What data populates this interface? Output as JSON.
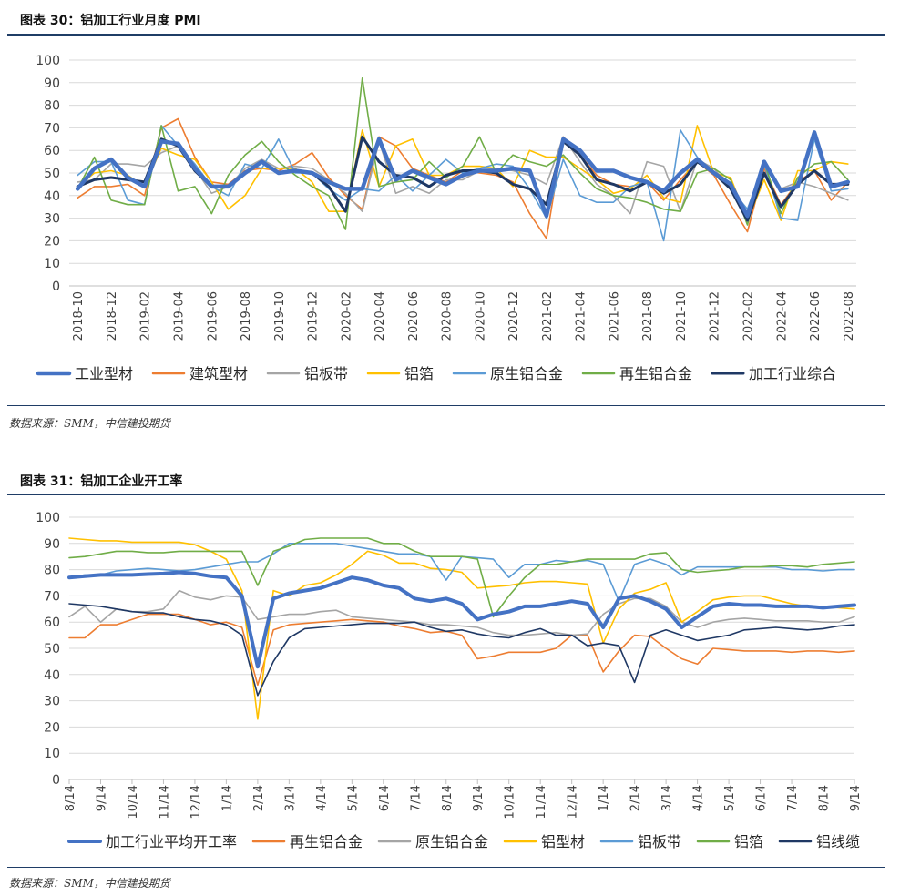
{
  "fig1": {
    "title": "图表 30：铝加工行业月度 PMI",
    "source": "数据来源：SMM，中信建投期货"
  },
  "fig2": {
    "title": "图表 31：铝加工企业开工率",
    "source": "数据来源：SMM，中信建投期货"
  },
  "chart_data": [
    {
      "type": "line",
      "title": "铝加工行业月度 PMI",
      "ylim": [
        0,
        100
      ],
      "yticks": [
        0,
        10,
        20,
        30,
        40,
        50,
        60,
        70,
        80,
        90,
        100
      ],
      "x": [
        "2018-10",
        "2018-11",
        "2018-12",
        "2019-01",
        "2019-02",
        "2019-03",
        "2019-04",
        "2019-05",
        "2019-06",
        "2019-07",
        "2019-08",
        "2019-09",
        "2019-10",
        "2019-11",
        "2019-12",
        "2020-01",
        "2020-02",
        "2020-03",
        "2020-04",
        "2020-05",
        "2020-06",
        "2020-07",
        "2020-08",
        "2020-09",
        "2020-10",
        "2020-11",
        "2020-12",
        "2021-01",
        "2021-02",
        "2021-03",
        "2021-04",
        "2021-05",
        "2021-06",
        "2021-07",
        "2021-08",
        "2021-09",
        "2021-10",
        "2021-11",
        "2021-12",
        "2022-01",
        "2022-02",
        "2022-03",
        "2022-04",
        "2022-05",
        "2022-06",
        "2022-07",
        "2022-08"
      ],
      "xtick_labels": [
        "2018-10",
        "2018-12",
        "2019-02",
        "2019-04",
        "2019-06",
        "2019-08",
        "2019-10",
        "2019-12",
        "2020-02",
        "2020-04",
        "2020-06",
        "2020-08",
        "2020-10",
        "2020-12",
        "2021-02",
        "2021-04",
        "2021-06",
        "2021-08",
        "2021-10",
        "2021-12",
        "2022-02",
        "2022-04",
        "2022-06",
        "2022-08"
      ],
      "series": [
        {
          "name": "工业型材",
          "color": "#4472c4",
          "width": 4.5,
          "values": [
            43,
            52,
            56,
            48,
            44,
            64,
            63,
            52,
            44,
            44,
            50,
            55,
            50,
            51,
            50,
            46,
            43,
            43,
            65,
            47,
            51,
            48,
            45,
            49,
            51,
            51,
            52,
            51,
            31,
            65,
            60,
            51,
            51,
            48,
            46,
            42,
            50,
            56,
            50,
            45,
            31,
            55,
            42,
            44,
            68,
            44,
            46
          ]
        },
        {
          "name": "建筑型材",
          "color": "#ed7d31",
          "width": 1.6,
          "values": [
            39,
            44,
            44,
            45,
            40,
            70,
            74,
            57,
            46,
            45,
            51,
            52,
            51,
            54,
            59,
            48,
            40,
            34,
            66,
            62,
            52,
            49,
            46,
            51,
            50,
            49,
            46,
            32,
            21,
            66,
            58,
            49,
            45,
            44,
            46,
            38,
            47,
            55,
            49,
            36,
            24,
            52,
            36,
            46,
            51,
            38,
            46
          ]
        },
        {
          "name": "铝板带",
          "color": "#a5a5a5",
          "width": 1.6,
          "values": [
            46,
            47,
            54,
            54,
            53,
            59,
            62,
            52,
            41,
            44,
            52,
            56,
            52,
            53,
            52,
            47,
            41,
            33,
            64,
            41,
            44,
            41,
            47,
            47,
            51,
            52,
            51,
            49,
            45,
            66,
            55,
            45,
            40,
            32,
            55,
            53,
            33,
            56,
            52,
            43,
            34,
            54,
            43,
            46,
            44,
            41,
            38
          ]
        },
        {
          "name": "铝箔",
          "color": "#ffc000",
          "width": 1.6,
          "values": [
            44,
            50,
            51,
            49,
            44,
            61,
            58,
            56,
            46,
            34,
            40,
            52,
            52,
            52,
            46,
            33,
            33,
            69,
            44,
            62,
            65,
            49,
            49,
            53,
            53,
            52,
            44,
            60,
            57,
            57,
            52,
            47,
            41,
            43,
            49,
            39,
            37,
            71,
            50,
            48,
            29,
            47,
            29,
            51,
            51,
            55,
            54
          ]
        },
        {
          "name": "原生铝合金",
          "color": "#5b9bd5",
          "width": 1.6,
          "values": [
            49,
            55,
            55,
            38,
            36,
            71,
            62,
            54,
            44,
            40,
            54,
            52,
            65,
            50,
            50,
            43,
            38,
            43,
            42,
            49,
            42,
            49,
            56,
            50,
            52,
            54,
            53,
            43,
            30,
            56,
            40,
            37,
            37,
            44,
            46,
            20,
            69,
            57,
            50,
            43,
            34,
            54,
            30,
            29,
            65,
            42,
            43
          ]
        },
        {
          "name": "再生铝合金",
          "color": "#70ad47",
          "width": 1.6,
          "values": [
            43,
            57,
            38,
            36,
            36,
            71,
            42,
            44,
            32,
            49,
            58,
            64,
            55,
            49,
            44,
            40,
            25,
            92,
            44,
            46,
            47,
            55,
            48,
            53,
            66,
            50,
            58,
            55,
            53,
            58,
            50,
            43,
            40,
            39,
            37,
            34,
            33,
            50,
            52,
            47,
            27,
            55,
            32,
            48,
            54,
            55,
            47
          ]
        },
        {
          "name": "加工行业综合",
          "color": "#1f3864",
          "width": 3,
          "values": [
            44,
            47,
            48,
            47,
            46,
            65,
            62,
            51,
            44,
            44,
            50,
            55,
            50,
            51,
            50,
            44,
            33,
            66,
            55,
            49,
            48,
            44,
            49,
            51,
            51,
            50,
            45,
            43,
            36,
            64,
            58,
            47,
            45,
            42,
            46,
            41,
            45,
            55,
            50,
            43,
            29,
            50,
            35,
            45,
            51,
            45,
            45
          ]
        }
      ]
    },
    {
      "type": "line",
      "title": "铝加工企业开工率",
      "ylim": [
        0,
        100
      ],
      "yticks": [
        0,
        10,
        20,
        30,
        40,
        50,
        60,
        70,
        80,
        90,
        100
      ],
      "xtick_labels": [
        "8/14",
        "9/14",
        "10/14",
        "11/14",
        "12/14",
        "1/14",
        "2/14",
        "3/14",
        "4/14",
        "5/14",
        "6/14",
        "7/14",
        "8/14",
        "9/14",
        "10/14",
        "11/14",
        "12/14",
        "1/14",
        "2/14",
        "3/14",
        "4/14",
        "5/14",
        "6/14",
        "7/14",
        "8/14",
        "9/14"
      ],
      "x": [
        0,
        0.5,
        1,
        1.5,
        2,
        2.5,
        3,
        3.5,
        4,
        4.5,
        5,
        5.5,
        6,
        6.5,
        7,
        7.5,
        8,
        8.5,
        9,
        9.5,
        10,
        10.5,
        11,
        11.5,
        12,
        12.5,
        13,
        13.5,
        14,
        14.5,
        15,
        15.5,
        16,
        16.5,
        17,
        17.5,
        18,
        18.5,
        19,
        19.5,
        20,
        20.5,
        21,
        21.5,
        22,
        22.5,
        23,
        23.5,
        24,
        24.5,
        25
      ],
      "series": [
        {
          "name": "加工行业平均开工率",
          "color": "#4472c4",
          "width": 4,
          "values": [
            77,
            77.5,
            78,
            78,
            78,
            78.3,
            78.5,
            79,
            78.5,
            77.5,
            77,
            70,
            43,
            69,
            71,
            72,
            73,
            75,
            77,
            76,
            74,
            73,
            69,
            68,
            69,
            67,
            61,
            63,
            64,
            66,
            66,
            67,
            68,
            67,
            58,
            69,
            70,
            68,
            65,
            58,
            62,
            66,
            67,
            66.5,
            66.5,
            66,
            66,
            66,
            65.5,
            66,
            66.5
          ]
        },
        {
          "name": "再生铝合金",
          "color": "#ed7d31",
          "width": 1.6,
          "values": [
            54,
            54,
            59,
            59,
            61,
            63,
            63,
            63,
            61,
            59,
            60,
            58,
            36,
            57,
            59,
            59.5,
            60,
            60.5,
            61,
            60.5,
            60,
            58.5,
            57.5,
            56,
            56.5,
            55,
            46,
            47,
            48.5,
            48.5,
            48.5,
            50,
            55,
            55,
            41,
            49,
            55,
            54.5,
            50,
            46,
            44,
            50,
            49.5,
            49,
            49,
            49,
            48.5,
            49,
            49,
            48.5,
            49
          ]
        },
        {
          "name": "原生铝合金",
          "color": "#a5a5a5",
          "width": 1.6,
          "values": [
            62,
            66,
            60,
            65,
            64,
            64,
            65,
            72,
            69.5,
            68.5,
            70,
            69.5,
            61,
            62,
            63,
            63,
            64,
            64.5,
            62,
            61.5,
            61,
            60.5,
            60,
            59,
            59,
            58.5,
            58,
            56,
            55,
            55,
            55.5,
            56,
            55,
            55.5,
            63,
            67,
            69,
            69,
            66,
            60,
            58,
            60,
            61,
            61.5,
            61,
            60.5,
            60.5,
            60.5,
            60,
            60,
            62
          ]
        },
        {
          "name": "铝型材",
          "color": "#ffc000",
          "width": 1.6,
          "values": [
            92,
            91.5,
            91,
            91,
            90.5,
            90.5,
            90.5,
            90.5,
            89.5,
            87,
            84,
            72,
            23,
            72,
            70,
            74,
            75,
            78,
            82,
            87,
            85.5,
            82.5,
            82.5,
            80.5,
            80,
            79,
            73,
            73.5,
            74,
            75,
            75.5,
            75.5,
            75,
            74.5,
            52,
            65,
            71,
            72.5,
            75,
            60,
            64,
            68.5,
            69.5,
            70,
            70,
            68.5,
            67,
            66,
            66,
            65.5,
            65
          ]
        },
        {
          "name": "铝板带",
          "color": "#5b9bd5",
          "width": 1.6,
          "values": [
            77,
            78,
            78,
            79.5,
            80,
            80.5,
            80,
            79.5,
            80,
            81,
            82,
            83,
            83,
            86,
            90,
            90,
            90,
            90,
            89,
            88,
            87,
            86,
            86,
            85,
            76,
            85,
            84.5,
            84,
            77,
            82,
            82,
            83.5,
            83,
            83.5,
            82,
            68,
            82,
            84,
            82,
            78,
            81,
            81,
            81,
            81,
            81,
            81,
            80,
            80,
            79.5,
            80,
            80
          ]
        },
        {
          "name": "铝箔",
          "color": "#70ad47",
          "width": 1.6,
          "values": [
            84.5,
            85,
            86,
            87,
            87,
            86.5,
            86.5,
            87,
            87,
            87,
            87,
            87,
            74,
            87,
            89,
            91.5,
            92,
            92,
            92,
            92,
            90,
            90,
            87,
            85,
            85,
            85,
            84,
            62,
            70,
            77,
            82,
            82,
            83,
            84,
            84,
            84,
            84,
            86,
            86.5,
            80,
            79,
            79.5,
            80,
            81,
            81,
            81.5,
            81.5,
            81,
            82,
            82.5,
            83
          ]
        },
        {
          "name": "铝线缆",
          "color": "#1f3864",
          "width": 1.6,
          "values": [
            67,
            66.5,
            66,
            65,
            64,
            63.5,
            63.5,
            62,
            61,
            60.5,
            59,
            55,
            32,
            45,
            54,
            57.5,
            58,
            58.5,
            59,
            59.5,
            59.5,
            59.5,
            60,
            58,
            56.5,
            57,
            55.5,
            54.5,
            54,
            56,
            57.5,
            55,
            55,
            51,
            52,
            51,
            37,
            55,
            57,
            55,
            53,
            54,
            55,
            57,
            57.5,
            58,
            57.5,
            57,
            57.5,
            58.5,
            59
          ]
        }
      ]
    }
  ]
}
